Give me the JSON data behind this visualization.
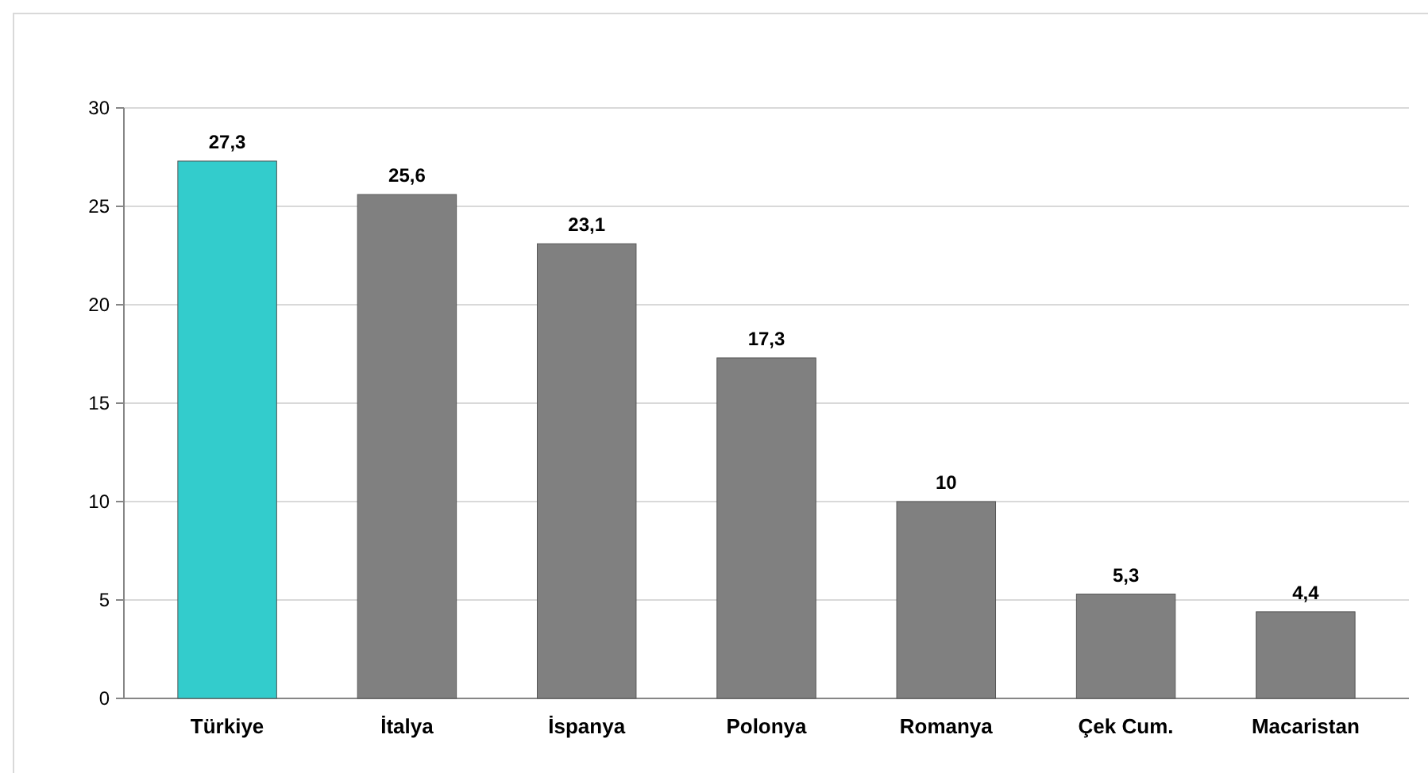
{
  "chart_data": {
    "type": "bar",
    "categories": [
      "Türkiye",
      "İtalya",
      "İspanya",
      "Polonya",
      "Romanya",
      "Çek Cum.",
      "Macaristan"
    ],
    "values": [
      27.3,
      25.6,
      23.1,
      17.3,
      10,
      5.3,
      4.4
    ],
    "value_labels": [
      "27,3",
      "25,6",
      "23,1",
      "17,3",
      "10",
      "5,3",
      "4,4"
    ],
    "colors": [
      "#33cccc",
      "#808080",
      "#808080",
      "#808080",
      "#808080",
      "#808080",
      "#808080"
    ],
    "ylim": [
      0,
      30
    ],
    "yticks": [
      0,
      5,
      10,
      15,
      20,
      25,
      30
    ],
    "grid": "y"
  }
}
